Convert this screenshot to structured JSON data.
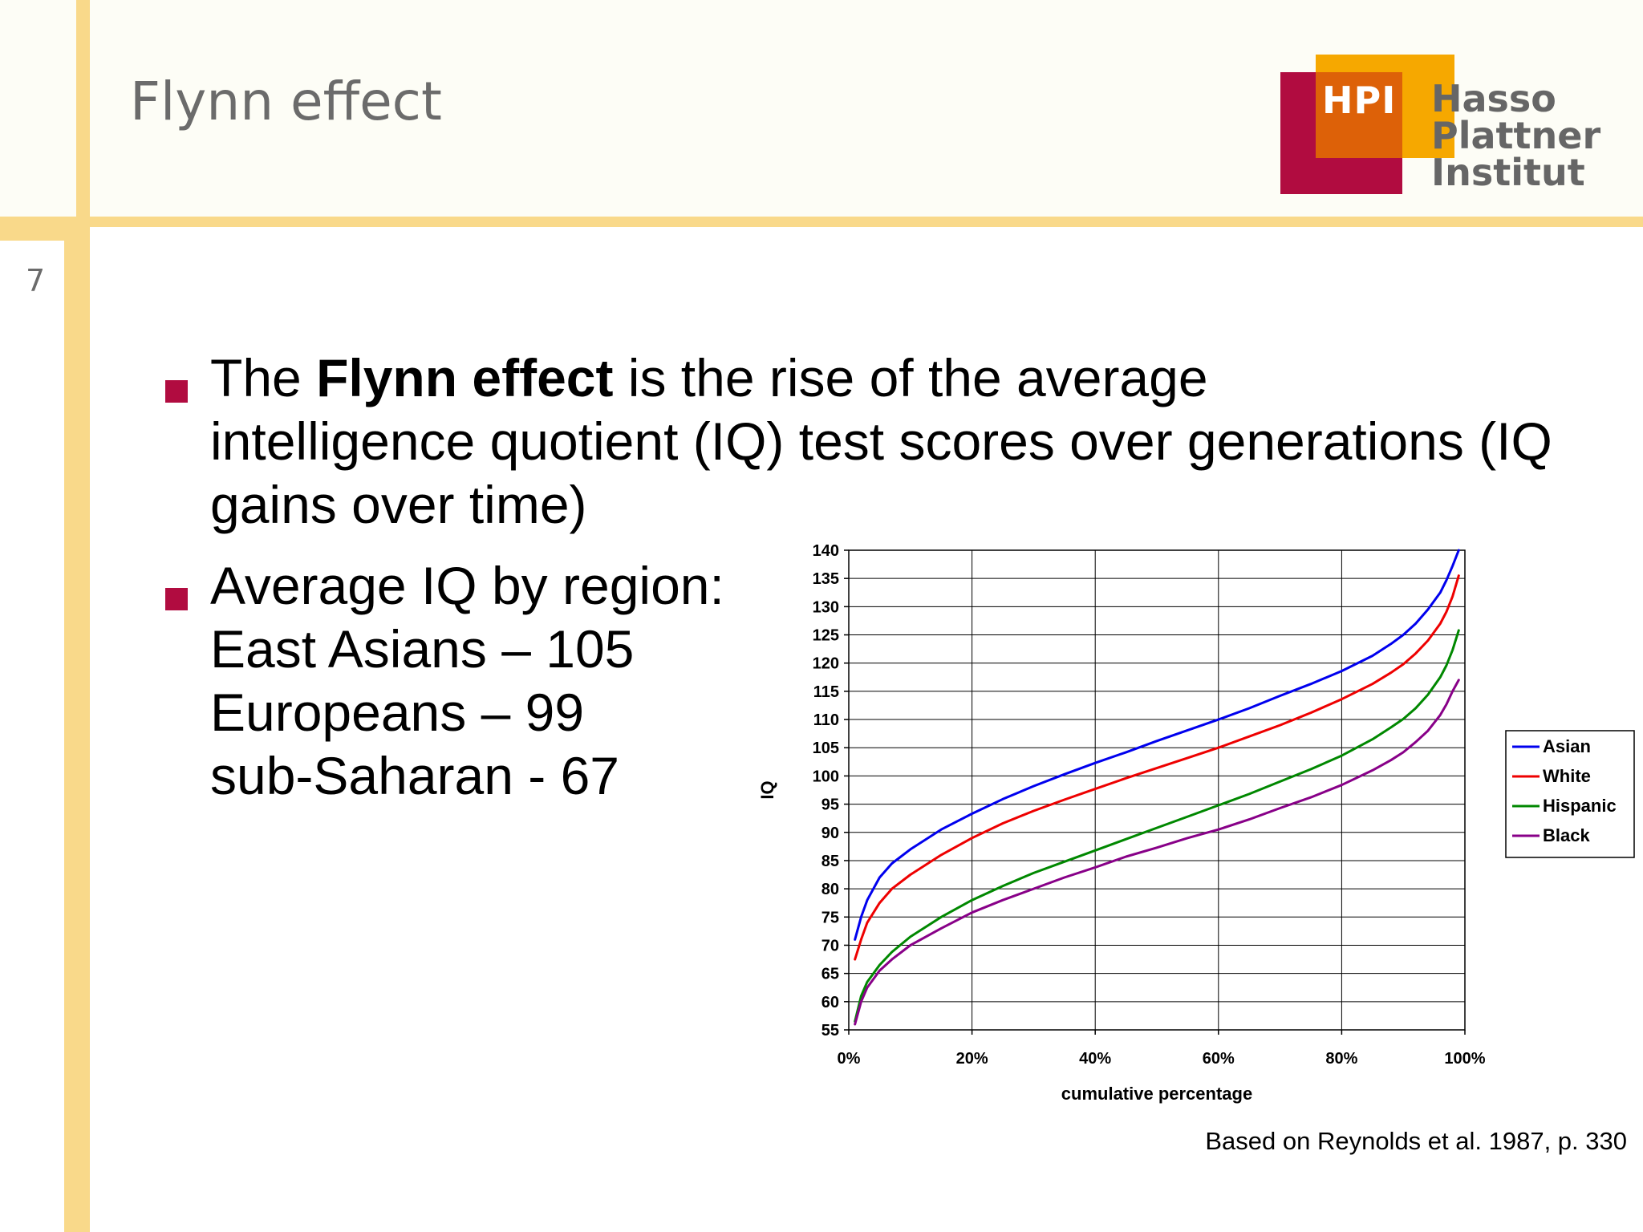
{
  "slide": {
    "title": "Flynn effect",
    "page_number": "7",
    "logo": {
      "mark": "HPI",
      "lines": [
        "Hasso",
        "Plattner",
        "Institut"
      ],
      "colors": {
        "red": "#b10c40",
        "orange": "#dd6108",
        "yellow": "#f6a800",
        "text": "#666666"
      }
    },
    "accent_color": "#f9d98a",
    "bullets": [
      {
        "lead": "The ",
        "bold": "Flynn effect",
        "rest": " is the rise of the average",
        "line2": "intelligence quotient (IQ) test scores over generations (IQ",
        "line3": "gains over time)"
      },
      {
        "lines": [
          "Average IQ by region:",
          "East Asians – 105",
          "Europeans – 99",
          "sub-Saharan - 67"
        ]
      }
    ],
    "source_note": "Based on Reynolds et al. 1987, p. 330"
  },
  "chart_data": {
    "type": "line",
    "xlabel": "cumulative percentage",
    "ylabel": "IQ",
    "xlim": [
      0,
      100
    ],
    "ylim": [
      55,
      140
    ],
    "x_ticks": [
      0,
      20,
      40,
      60,
      80,
      100
    ],
    "x_tick_labels": [
      "0%",
      "20%",
      "40%",
      "60%",
      "80%",
      "100%"
    ],
    "y_ticks": [
      55,
      60,
      65,
      70,
      75,
      80,
      85,
      90,
      95,
      100,
      105,
      110,
      115,
      120,
      125,
      130,
      135,
      140
    ],
    "grid": true,
    "legend_position": "right",
    "series": [
      {
        "name": "Asian",
        "color": "#0000ee",
        "points": [
          [
            1,
            71
          ],
          [
            2,
            75
          ],
          [
            3,
            78
          ],
          [
            5,
            82
          ],
          [
            7,
            84.5
          ],
          [
            10,
            87
          ],
          [
            15,
            90.5
          ],
          [
            20,
            93.3
          ],
          [
            25,
            95.9
          ],
          [
            30,
            98.2
          ],
          [
            35,
            100.3
          ],
          [
            40,
            102.3
          ],
          [
            45,
            104.2
          ],
          [
            50,
            106.2
          ],
          [
            55,
            108.1
          ],
          [
            60,
            110
          ],
          [
            65,
            112
          ],
          [
            70,
            114.2
          ],
          [
            75,
            116.3
          ],
          [
            80,
            118.6
          ],
          [
            85,
            121.3
          ],
          [
            88,
            123.4
          ],
          [
            90,
            125
          ],
          [
            92,
            127
          ],
          [
            94,
            129.5
          ],
          [
            96,
            132.5
          ],
          [
            97,
            134.7
          ],
          [
            98,
            137.2
          ],
          [
            99,
            140
          ]
        ]
      },
      {
        "name": "White",
        "color": "#ee0000",
        "points": [
          [
            1,
            67.5
          ],
          [
            2,
            71
          ],
          [
            3,
            74
          ],
          [
            5,
            77.5
          ],
          [
            7,
            80
          ],
          [
            10,
            82.5
          ],
          [
            15,
            86
          ],
          [
            20,
            89
          ],
          [
            25,
            91.6
          ],
          [
            30,
            93.8
          ],
          [
            35,
            95.8
          ],
          [
            40,
            97.7
          ],
          [
            45,
            99.6
          ],
          [
            50,
            101.4
          ],
          [
            55,
            103.2
          ],
          [
            60,
            105
          ],
          [
            65,
            107
          ],
          [
            70,
            109
          ],
          [
            75,
            111.2
          ],
          [
            80,
            113.6
          ],
          [
            85,
            116.3
          ],
          [
            88,
            118.3
          ],
          [
            90,
            119.8
          ],
          [
            92,
            121.7
          ],
          [
            94,
            124
          ],
          [
            96,
            127
          ],
          [
            97,
            129.1
          ],
          [
            98,
            131.8
          ],
          [
            99,
            135.5
          ]
        ]
      },
      {
        "name": "Hispanic",
        "color": "#008800",
        "points": [
          [
            1,
            56.5
          ],
          [
            2,
            61
          ],
          [
            3,
            63.5
          ],
          [
            5,
            66.5
          ],
          [
            7,
            68.8
          ],
          [
            10,
            71.5
          ],
          [
            15,
            75
          ],
          [
            20,
            78
          ],
          [
            25,
            80.5
          ],
          [
            30,
            82.8
          ],
          [
            35,
            84.8
          ],
          [
            40,
            86.8
          ],
          [
            45,
            88.8
          ],
          [
            50,
            90.8
          ],
          [
            55,
            92.8
          ],
          [
            60,
            94.8
          ],
          [
            65,
            96.8
          ],
          [
            70,
            99
          ],
          [
            75,
            101.2
          ],
          [
            80,
            103.6
          ],
          [
            85,
            106.5
          ],
          [
            88,
            108.6
          ],
          [
            90,
            110.1
          ],
          [
            92,
            112
          ],
          [
            94,
            114.4
          ],
          [
            96,
            117.5
          ],
          [
            97,
            119.6
          ],
          [
            98,
            122.3
          ],
          [
            99,
            125.8
          ]
        ]
      },
      {
        "name": "Black",
        "color": "#880088",
        "points": [
          [
            1,
            56
          ],
          [
            2,
            60
          ],
          [
            3,
            62.5
          ],
          [
            5,
            65.5
          ],
          [
            7,
            67.5
          ],
          [
            10,
            70
          ],
          [
            15,
            73
          ],
          [
            20,
            75.8
          ],
          [
            25,
            78
          ],
          [
            30,
            80
          ],
          [
            35,
            82
          ],
          [
            40,
            83.8
          ],
          [
            45,
            85.7
          ],
          [
            50,
            87.3
          ],
          [
            55,
            89
          ],
          [
            60,
            90.5
          ],
          [
            65,
            92.3
          ],
          [
            70,
            94.3
          ],
          [
            75,
            96.2
          ],
          [
            80,
            98.4
          ],
          [
            85,
            101
          ],
          [
            88,
            102.8
          ],
          [
            90,
            104.2
          ],
          [
            92,
            106
          ],
          [
            94,
            108
          ],
          [
            96,
            110.8
          ],
          [
            97,
            112.7
          ],
          [
            98,
            115
          ],
          [
            99,
            117
          ]
        ]
      }
    ]
  }
}
